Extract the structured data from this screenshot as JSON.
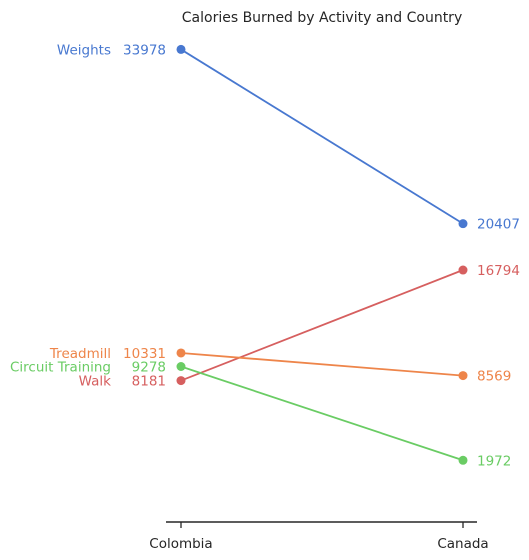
{
  "chart_data": {
    "type": "line",
    "title": "Calories Burned by Activity and Country",
    "categories": [
      "Colombia",
      "Canada"
    ],
    "xlabel": "",
    "ylabel": "",
    "ylim": [
      0,
      35000
    ],
    "grid": false,
    "legend": "none",
    "series": [
      {
        "name": "Weights",
        "values": [
          33978,
          20407
        ],
        "color": "#4878d0"
      },
      {
        "name": "Walk",
        "values": [
          8181,
          16794
        ],
        "color": "#d65f5f"
      },
      {
        "name": "Treadmill",
        "values": [
          10331,
          8569
        ],
        "color": "#ee854a"
      },
      {
        "name": "Circuit Training",
        "values": [
          9278,
          1972
        ],
        "color": "#6acc64"
      }
    ]
  }
}
